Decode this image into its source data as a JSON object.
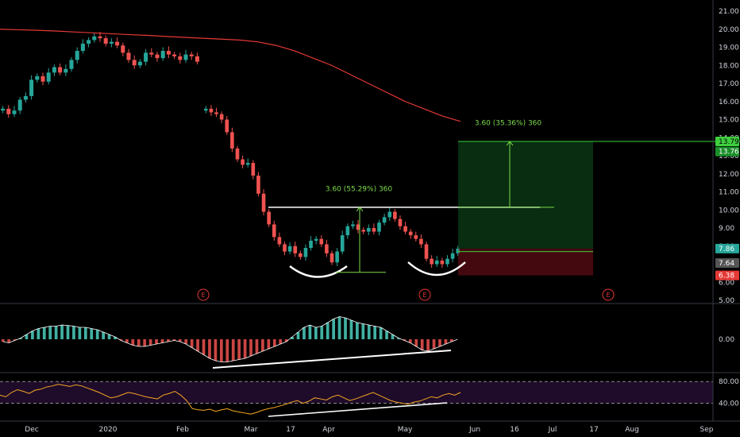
{
  "chart_data": {
    "type": "candlestick",
    "theme": {
      "background": "#000000",
      "up_color": "#26a69a",
      "down_color": "#ef5350",
      "ma_color": "#e53935",
      "grid": false
    },
    "price_axis": {
      "ticks": [
        "21.00",
        "20.00",
        "19.00",
        "18.00",
        "17.00",
        "16.00",
        "15.00",
        "14.00",
        "13.00",
        "12.00",
        "11.00",
        "10.00",
        "9.00",
        "8.00",
        "7.00",
        "6.00",
        "5.00"
      ],
      "ylim": [
        5,
        21
      ]
    },
    "time_axis": {
      "ticks": [
        "Dec",
        "2020",
        "Feb",
        "Mar",
        "17",
        "Apr",
        "May",
        "Jun",
        "16",
        "Jul",
        "17",
        "Aug",
        "Sep"
      ]
    },
    "price_tags": [
      {
        "label": "13.79",
        "value": 13.79,
        "bg": "#3ecf3e",
        "fg": "#000000"
      },
      {
        "label": "13.76",
        "value": 13.76,
        "bg": "#1b8f2a",
        "fg": "#ffffff"
      },
      {
        "label": "7.86",
        "value": 7.86,
        "bg": "#26a69a",
        "fg": "#ffffff"
      },
      {
        "label": "7.64",
        "value": 7.64,
        "bg": "#555555",
        "fg": "#ffffff"
      },
      {
        "label": "6.38",
        "value": 6.38,
        "bg": "#e53935",
        "fg": "#ffffff"
      }
    ],
    "annotations": [
      {
        "id": "measure-1",
        "text": "3.60 (55.29%) 360",
        "color": "#7cdb4a"
      },
      {
        "id": "measure-2",
        "text": "3.60 (35.36%) 360",
        "color": "#7cdb4a"
      }
    ],
    "earnings_markers": [
      "E",
      "E",
      "E"
    ],
    "macd_panel": {
      "ticks": [
        "0.00"
      ],
      "values": [
        -0.1,
        -0.15,
        -0.05,
        0.05,
        0.2,
        0.35,
        0.45,
        0.5,
        0.55,
        0.55,
        0.6,
        0.58,
        0.55,
        0.5,
        0.5,
        0.45,
        0.4,
        0.3,
        0.2,
        0.1,
        -0.05,
        -0.15,
        -0.25,
        -0.3,
        -0.3,
        -0.25,
        -0.2,
        -0.15,
        -0.1,
        -0.05,
        -0.1,
        -0.2,
        -0.35,
        -0.5,
        -0.65,
        -0.8,
        -0.9,
        -0.95,
        -0.95,
        -0.9,
        -0.85,
        -0.8,
        -0.7,
        -0.6,
        -0.5,
        -0.4,
        -0.3,
        -0.2,
        -0.1,
        0.1,
        0.3,
        0.5,
        0.6,
        0.5,
        0.55,
        0.7,
        0.85,
        0.95,
        0.9,
        0.8,
        0.7,
        0.65,
        0.6,
        0.55,
        0.5,
        0.35,
        0.2,
        0.05,
        -0.05,
        -0.15,
        -0.3,
        -0.45,
        -0.5,
        -0.4,
        -0.3,
        -0.2,
        -0.1,
        0.0
      ],
      "ylim": [
        -1.1,
        1.1
      ]
    },
    "rsi_panel": {
      "ticks": [
        "80.00",
        "40.00"
      ],
      "band": [
        40,
        80
      ],
      "values": [
        55,
        52,
        60,
        65,
        62,
        58,
        64,
        66,
        70,
        72,
        75,
        73,
        71,
        74,
        72,
        68,
        64,
        60,
        55,
        50,
        52,
        56,
        60,
        58,
        55,
        52,
        50,
        48,
        55,
        58,
        62,
        55,
        45,
        30,
        28,
        27,
        29,
        25,
        28,
        30,
        26,
        24,
        22,
        20,
        23,
        27,
        30,
        32,
        35,
        38,
        42,
        45,
        40,
        44,
        50,
        48,
        46,
        52,
        55,
        50,
        45,
        48,
        52,
        56,
        60,
        55,
        50,
        45,
        42,
        40,
        38,
        42,
        44,
        48,
        52,
        50,
        55,
        58,
        55,
        60
      ],
      "ylim": [
        10,
        95
      ]
    },
    "series": [
      {
        "name": "price",
        "values": [
          15.6,
          15.3,
          15.5,
          16.1,
          16.3,
          17.2,
          17.4,
          17.1,
          17.6,
          17.9,
          17.6,
          17.8,
          18.3,
          18.8,
          19.2,
          19.4,
          19.6,
          19.5,
          19.2,
          19.3,
          19.1,
          18.7,
          18.3,
          18.0,
          18.2,
          18.7,
          18.6,
          18.4,
          18.8,
          18.6,
          18.5,
          18.3,
          18.6,
          18.5,
          18.2,
          15.6,
          15.4,
          15.3,
          15.0,
          14.3,
          13.4,
          12.8,
          12.5,
          12.6,
          11.9,
          10.9,
          9.9,
          9.2,
          8.5,
          8.1,
          7.7,
          8.0,
          7.6,
          7.4,
          7.9,
          8.3,
          8.4,
          8.1,
          7.6,
          7.1,
          7.7,
          8.6,
          9.1,
          9.2,
          8.9,
          8.8,
          9.0,
          8.8,
          9.3,
          9.6,
          9.9,
          9.5,
          9.1,
          8.8,
          8.6,
          8.4,
          8.1,
          7.3,
          7.0,
          7.2,
          7.0,
          7.3,
          7.6,
          7.86
        ]
      }
    ],
    "moving_average": {
      "values": [
        20.0,
        19.97,
        19.94,
        19.9,
        19.85,
        19.8,
        19.75,
        19.7,
        19.66,
        19.6,
        19.55,
        19.5,
        19.45,
        19.4,
        19.3,
        19.1,
        18.8,
        18.4,
        18.0,
        17.5,
        17.0,
        16.5,
        16.0,
        15.6,
        15.2,
        14.9
      ]
    }
  }
}
